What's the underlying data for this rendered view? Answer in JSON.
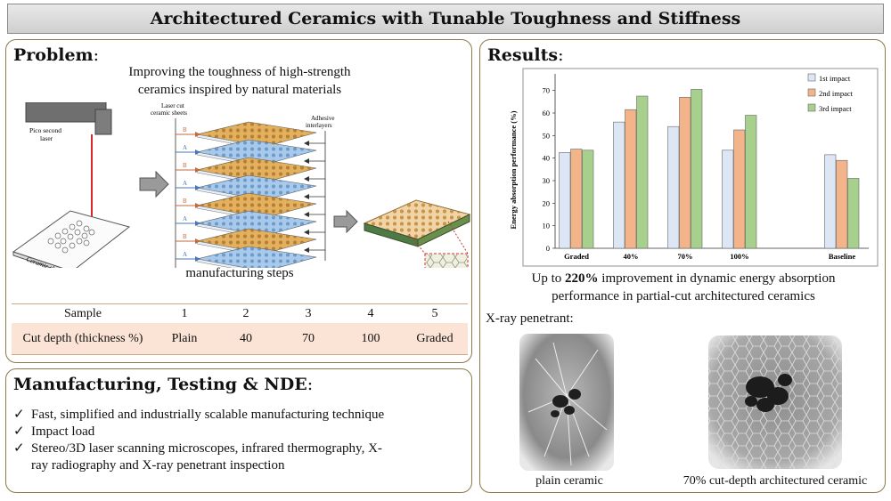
{
  "title": "Architectured Ceramics with Tunable Toughness and Stiffness",
  "problem": {
    "heading": "Problem",
    "description_line1": "Improving the toughness of high-strength",
    "description_line2": "ceramics inspired by natural materials",
    "diagram": {
      "laser_label_line1": "Pico second",
      "laser_label_line2": "laser",
      "sheet_label": "Ceramic sheet",
      "cut_sheets_label_line1": "Laser cut",
      "cut_sheets_label_line2": "ceramic sheets",
      "adhesive_label_line1": "Adhesive",
      "adhesive_label_line2": "interlayers",
      "layer_letters": [
        "B",
        "A",
        "B",
        "A",
        "B",
        "A",
        "B",
        "A"
      ]
    },
    "steps_caption": "manufacturing steps",
    "table": {
      "row1_header": "Sample",
      "row1": [
        "1",
        "2",
        "3",
        "4",
        "5"
      ],
      "row2_header": "Cut depth (thickness %)",
      "row2": [
        "Plain",
        "40",
        "70",
        "100",
        "Graded"
      ]
    }
  },
  "manufacturing": {
    "heading": "Manufacturing, Testing & NDE",
    "bullets": [
      "Fast, simplified and industrially scalable manufacturing technique",
      "Impact load",
      "Stereo/3D laser scanning microscopes, infrared thermography, X-",
      "ray radiography and X-ray penetrant inspection"
    ],
    "check_glyph": "✓"
  },
  "results": {
    "heading": "Results",
    "caption_pre": "Up to ",
    "caption_bold": "220%",
    "caption_post": " improvement in dynamic energy absorption",
    "caption_line2": "performance in partial-cut architectured ceramics",
    "xray_label": "X-ray penetrant:",
    "xray_caption1": "plain ceramic",
    "xray_caption2": "70% cut-depth architectured ceramic"
  },
  "chart_data": {
    "type": "bar",
    "categories": [
      "Graded",
      "40%",
      "70%",
      "100%",
      "Baseline"
    ],
    "series": [
      {
        "name": "1st impact",
        "values": [
          42.5,
          56,
          54,
          43.5,
          41.5
        ],
        "color": "#dde6f5"
      },
      {
        "name": "2nd impact",
        "values": [
          44,
          61.5,
          67,
          52.5,
          39
        ],
        "color": "#f3b48a"
      },
      {
        "name": "3rd impact",
        "values": [
          43.5,
          67.5,
          70.5,
          59,
          31
        ],
        "color": "#a8d08d"
      }
    ],
    "ylabel": "Energy absorption performance (%)",
    "yticks": [
      "0",
      "10",
      "20",
      "30",
      "40",
      "50",
      "60",
      "70"
    ],
    "ylim": [
      0,
      75
    ],
    "legend": "top-right"
  }
}
